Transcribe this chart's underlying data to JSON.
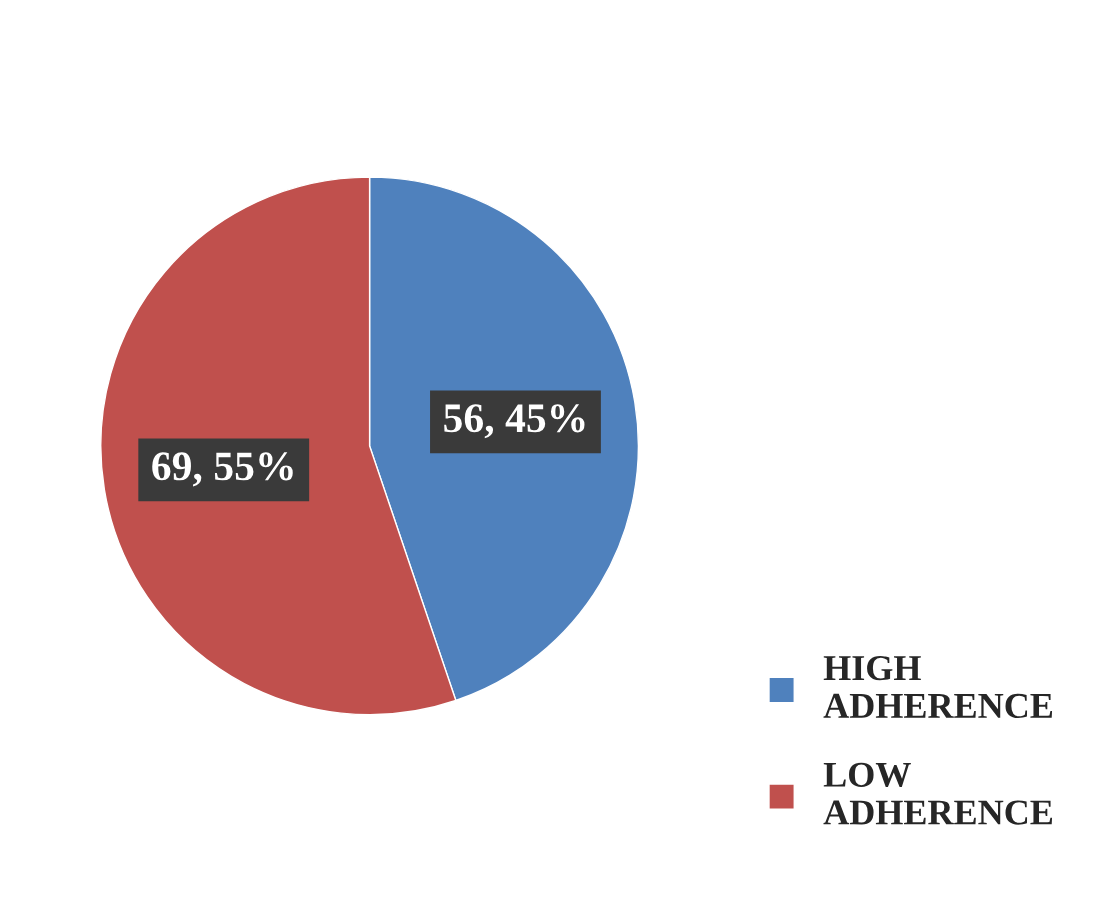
{
  "chart_data": {
    "type": "pie",
    "categories": [
      "HIGH ADHERENCE",
      "LOW ADHERENCE"
    ],
    "values": [
      56,
      69
    ],
    "colors": [
      "#4f81bd",
      "#c0504d"
    ],
    "value_labels": [
      "56, 45%",
      "69, 55%"
    ],
    "legend": "bottom right"
  }
}
